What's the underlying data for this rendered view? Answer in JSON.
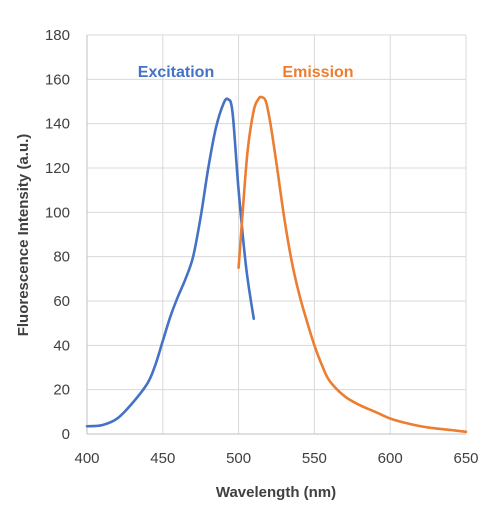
{
  "chart_data": {
    "type": "line",
    "xlabel": "Wavelength (nm)",
    "ylabel": "Fluorescence Intensity (a.u.)",
    "xlim": [
      400,
      650
    ],
    "ylim": [
      0,
      180
    ],
    "x_ticks": [
      "400",
      "450",
      "500",
      "550",
      "600",
      "650"
    ],
    "y_ticks": [
      "0",
      "20",
      "40",
      "60",
      "80",
      "100",
      "120",
      "140",
      "160",
      "180"
    ],
    "grid": true,
    "legend": "inline labels above curves",
    "series": [
      {
        "name": "Excitation",
        "color": "#4472C4",
        "x": [
          400,
          410,
          420,
          430,
          440,
          445,
          450,
          455,
          460,
          465,
          470,
          475,
          480,
          485,
          490,
          493,
          496,
          500,
          505,
          510
        ],
        "y": [
          3.5,
          4,
          7,
          14,
          23,
          31,
          42,
          53,
          62,
          70,
          80,
          98,
          120,
          138,
          149,
          151,
          145,
          110,
          75,
          52
        ]
      },
      {
        "name": "Emission",
        "color": "#ED7D31",
        "x": [
          500,
          503,
          506,
          510,
          513,
          515,
          518,
          521,
          525,
          530,
          535,
          540,
          545,
          550,
          555,
          560,
          570,
          580,
          590,
          600,
          610,
          620,
          630,
          640,
          650
        ],
        "y": [
          75,
          103,
          128,
          146,
          151,
          152,
          150,
          140,
          122,
          98,
          78,
          63,
          51,
          40,
          31,
          24,
          17,
          13,
          10,
          7,
          5,
          3.5,
          2.5,
          1.8,
          1
        ]
      }
    ]
  }
}
